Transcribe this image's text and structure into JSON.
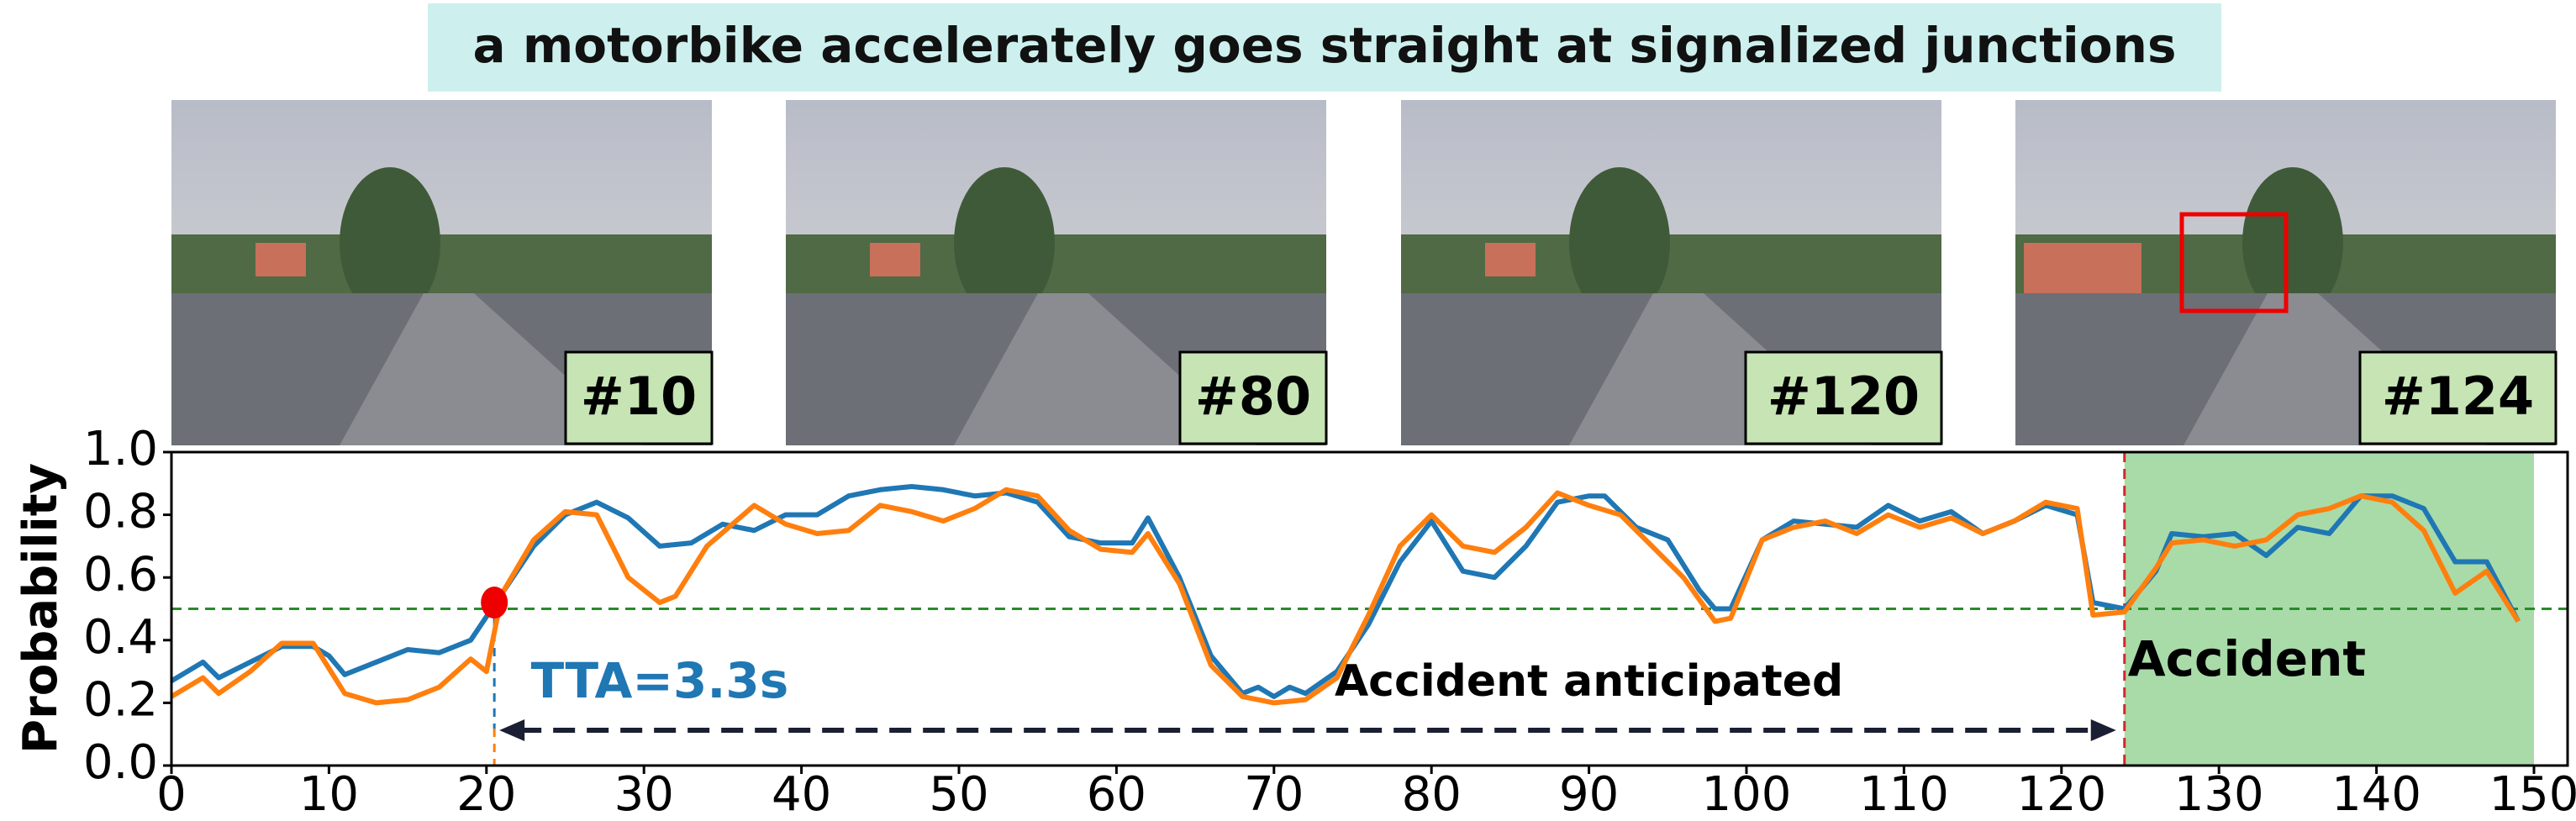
{
  "chart_data": {
    "type": "line",
    "title": "a motorbike accelerately goes straight at signalized junctions",
    "frames": [
      "#10",
      "#80",
      "#120",
      "#124"
    ],
    "ylabel": "Probability",
    "xlim": [
      0,
      150
    ],
    "ylim": [
      0,
      1
    ],
    "xticks": [
      0,
      10,
      20,
      30,
      40,
      50,
      60,
      70,
      80,
      90,
      100,
      110,
      120,
      130,
      140,
      150
    ],
    "yticks": [
      {
        "value": 0,
        "label": "0.0"
      },
      {
        "value": 0.2,
        "label": "0.2"
      },
      {
        "value": 0.4,
        "label": "0.4"
      },
      {
        "value": 0.6,
        "label": "0.6"
      },
      {
        "value": 0.8,
        "label": "0.8"
      },
      {
        "value": 1,
        "label": "1.0"
      }
    ],
    "threshold": 0.5,
    "threshold_color": "#2a8a2a",
    "accident_frame": 124,
    "accident_color": "#d62728",
    "accident_region_color": "#a9dba9",
    "anticipation": {
      "x": 20.5,
      "y": 0.52
    },
    "annotations": {
      "tta": "TTA=3.3s",
      "anticipated": "Accident anticipated",
      "accident": "Accident"
    },
    "series": [
      {
        "color": "#1f77b4",
        "x": [
          0,
          2,
          3,
          5,
          7,
          9,
          10,
          11,
          13,
          15,
          17,
          19,
          21,
          23,
          25,
          27,
          29,
          31,
          33,
          35,
          37,
          39,
          41,
          43,
          45,
          47,
          49,
          51,
          53,
          55,
          57,
          59,
          61,
          62,
          64,
          66,
          68,
          69,
          70,
          71,
          72,
          74,
          76,
          78,
          80,
          82,
          84,
          86,
          88,
          90,
          91,
          93,
          95,
          97,
          98,
          99,
          101,
          103,
          105,
          107,
          109,
          111,
          113,
          115,
          117,
          119,
          121,
          122,
          124,
          126,
          127,
          129,
          131,
          133,
          135,
          137,
          139,
          141,
          143,
          145,
          147,
          149
        ],
        "values": [
          0.27,
          0.33,
          0.28,
          0.33,
          0.38,
          0.38,
          0.35,
          0.29,
          0.33,
          0.37,
          0.36,
          0.4,
          0.55,
          0.7,
          0.8,
          0.84,
          0.79,
          0.7,
          0.71,
          0.77,
          0.75,
          0.8,
          0.8,
          0.86,
          0.88,
          0.89,
          0.88,
          0.86,
          0.87,
          0.84,
          0.73,
          0.71,
          0.71,
          0.79,
          0.6,
          0.35,
          0.23,
          0.25,
          0.22,
          0.25,
          0.23,
          0.3,
          0.45,
          0.65,
          0.78,
          0.62,
          0.6,
          0.7,
          0.84,
          0.86,
          0.86,
          0.76,
          0.72,
          0.56,
          0.5,
          0.5,
          0.72,
          0.78,
          0.77,
          0.76,
          0.83,
          0.78,
          0.81,
          0.74,
          0.78,
          0.83,
          0.8,
          0.52,
          0.5,
          0.62,
          0.74,
          0.73,
          0.74,
          0.67,
          0.76,
          0.74,
          0.86,
          0.86,
          0.82,
          0.65,
          0.65,
          0.46
        ]
      },
      {
        "color": "#ff7f0e",
        "x": [
          0,
          2,
          3,
          5,
          7,
          9,
          10,
          11,
          13,
          15,
          17,
          19,
          20,
          21,
          23,
          25,
          27,
          29,
          31,
          32,
          34,
          37,
          39,
          41,
          43,
          45,
          47,
          49,
          51,
          53,
          55,
          57,
          59,
          61,
          62,
          64,
          66,
          68,
          70,
          72,
          74,
          76,
          78,
          80,
          82,
          84,
          86,
          88,
          90,
          92,
          94,
          96,
          98,
          99,
          101,
          103,
          105,
          107,
          109,
          111,
          113,
          115,
          117,
          119,
          121,
          122,
          124,
          126,
          127,
          129,
          131,
          133,
          135,
          137,
          139,
          141,
          143,
          145,
          147,
          149
        ],
        "values": [
          0.22,
          0.28,
          0.23,
          0.3,
          0.39,
          0.39,
          0.31,
          0.23,
          0.2,
          0.21,
          0.25,
          0.34,
          0.3,
          0.55,
          0.72,
          0.81,
          0.8,
          0.6,
          0.52,
          0.54,
          0.7,
          0.83,
          0.77,
          0.74,
          0.75,
          0.83,
          0.81,
          0.78,
          0.82,
          0.88,
          0.86,
          0.75,
          0.69,
          0.68,
          0.74,
          0.58,
          0.32,
          0.22,
          0.2,
          0.21,
          0.28,
          0.48,
          0.7,
          0.8,
          0.7,
          0.68,
          0.76,
          0.87,
          0.83,
          0.8,
          0.7,
          0.6,
          0.46,
          0.47,
          0.72,
          0.76,
          0.78,
          0.74,
          0.8,
          0.76,
          0.79,
          0.74,
          0.78,
          0.84,
          0.82,
          0.48,
          0.49,
          0.63,
          0.71,
          0.72,
          0.7,
          0.72,
          0.8,
          0.82,
          0.86,
          0.84,
          0.75,
          0.55,
          0.62,
          0.46
        ]
      }
    ]
  }
}
